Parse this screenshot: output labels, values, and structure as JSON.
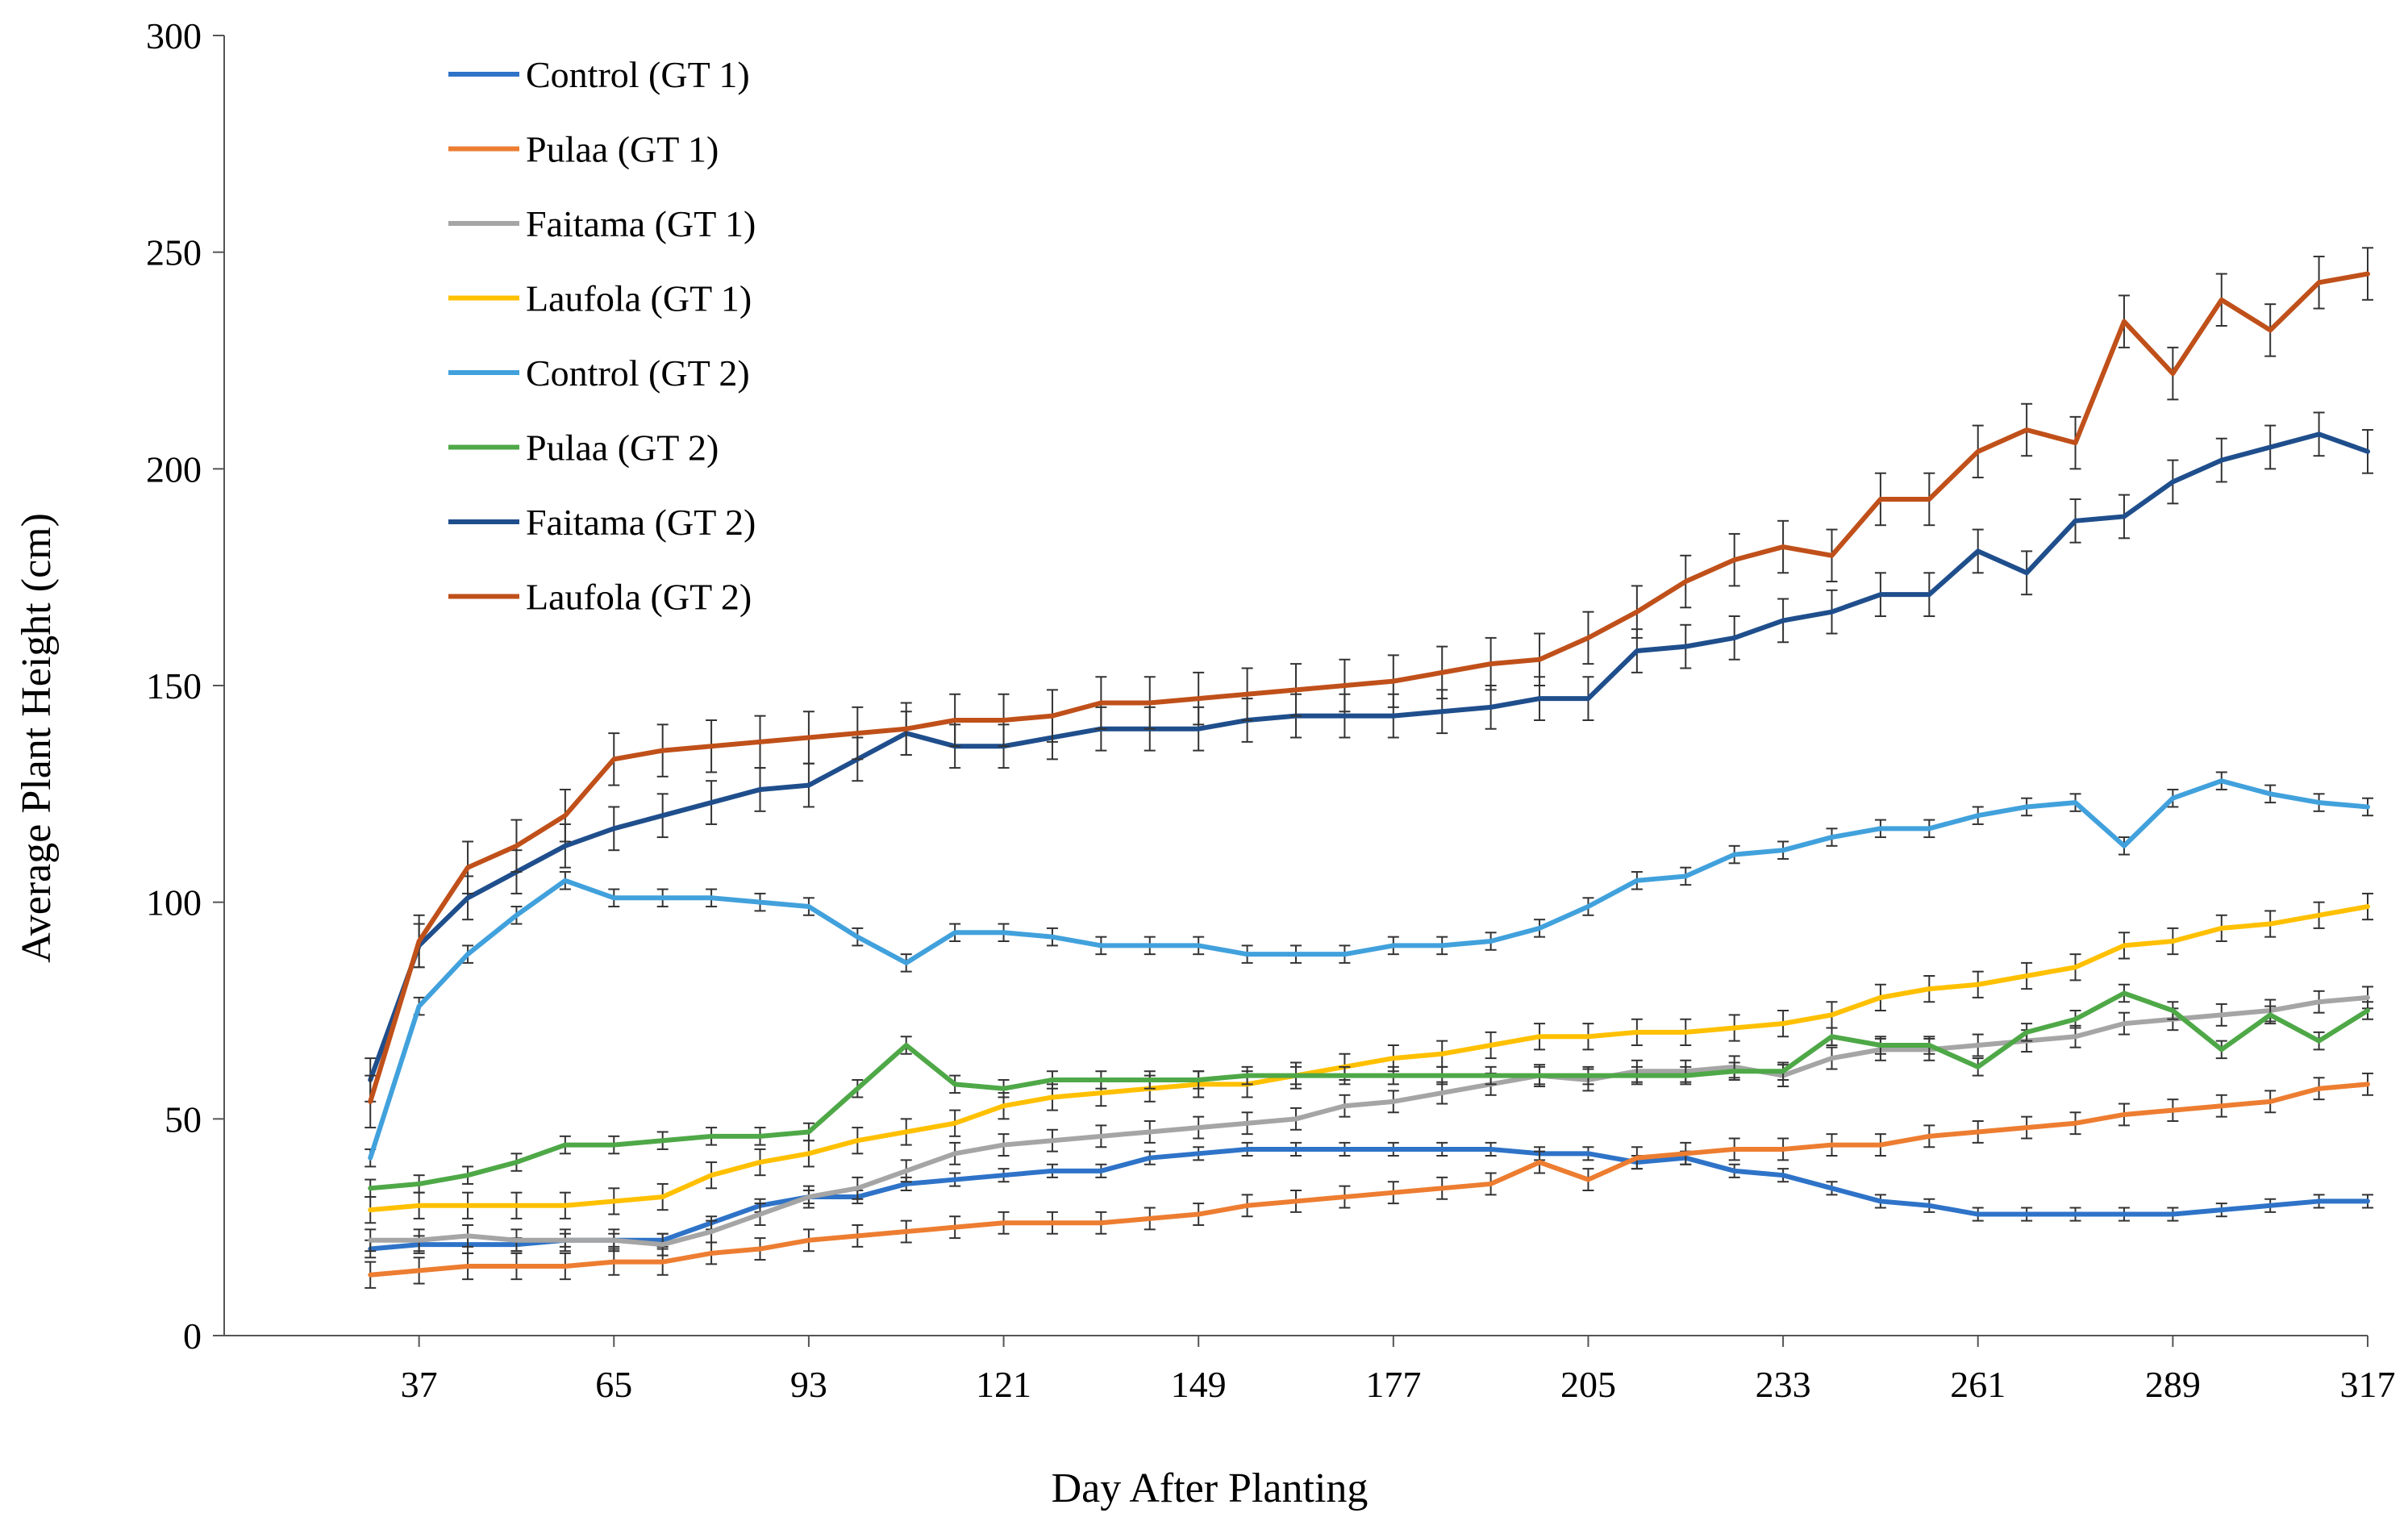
{
  "chart_data": {
    "type": "line",
    "title": "",
    "xlabel": "Day After Planting",
    "ylabel": "Average Plant Height (cm)",
    "xlim": [
      9,
      317
    ],
    "ylim": [
      0,
      300
    ],
    "xticks": [
      37,
      65,
      93,
      121,
      149,
      177,
      205,
      233,
      261,
      289,
      317
    ],
    "yticks": [
      0,
      50,
      100,
      150,
      200,
      250,
      300
    ],
    "grid": false,
    "legend_position": "top-left",
    "x": [
      30,
      37,
      44,
      51,
      58,
      65,
      72,
      79,
      86,
      93,
      100,
      107,
      114,
      121,
      128,
      135,
      142,
      149,
      156,
      163,
      170,
      177,
      184,
      191,
      198,
      205,
      212,
      219,
      226,
      233,
      240,
      247,
      254,
      261,
      268,
      275,
      282,
      289,
      296,
      303,
      310,
      317
    ],
    "series": [
      {
        "name": "Control (GT 1)",
        "color": "#2e73c8",
        "values": [
          20,
          21,
          21,
          21,
          22,
          22,
          22,
          26,
          30,
          32,
          32,
          35,
          36,
          37,
          38,
          38,
          41,
          42,
          43,
          43,
          43,
          43,
          43,
          43,
          42,
          42,
          40,
          41,
          38,
          37,
          34,
          31,
          30,
          28,
          28,
          28,
          28,
          28,
          29,
          30,
          31,
          31
        ],
        "errors": [
          2,
          2,
          2,
          1.5,
          1.5,
          1.5,
          1.5,
          1.5,
          1.5,
          1.5,
          1.5,
          1.5,
          1.5,
          1.5,
          1.5,
          1.5,
          1.5,
          1.5,
          1.5,
          1.5,
          1.5,
          1.5,
          1.5,
          1.5,
          1.5,
          1.5,
          1.5,
          1.5,
          1.5,
          1.5,
          1.5,
          1.5,
          1.5,
          1.5,
          1.5,
          1.5,
          1.5,
          1.5,
          1.5,
          1.5,
          1.5,
          1.5
        ]
      },
      {
        "name": "Pulaa (GT 1)",
        "color": "#ed7d31",
        "values": [
          14,
          15,
          16,
          16,
          16,
          17,
          17,
          19,
          20,
          22,
          23,
          24,
          25,
          26,
          26,
          26,
          27,
          28,
          30,
          31,
          32,
          33,
          34,
          35,
          40,
          36,
          41,
          42,
          43,
          43,
          44,
          44,
          46,
          47,
          48,
          49,
          51,
          52,
          53,
          54,
          57,
          58
        ],
        "errors": [
          3,
          3,
          3,
          3,
          3,
          3,
          3,
          2.5,
          2.5,
          2.5,
          2.5,
          2.5,
          2.5,
          2.5,
          2.5,
          2.5,
          2.5,
          2.5,
          2.5,
          2.5,
          2.5,
          2.5,
          2.5,
          2.5,
          2.5,
          2.5,
          2.5,
          2.5,
          2.5,
          2.5,
          2.5,
          2.5,
          2.5,
          2.5,
          2.5,
          2.5,
          2.5,
          2.5,
          2.5,
          2.5,
          2.5,
          2.5
        ]
      },
      {
        "name": "Faitama (GT 1)",
        "color": "#a5a5a5",
        "values": [
          22,
          22,
          23,
          22,
          22,
          22,
          21,
          24,
          28,
          32,
          34,
          38,
          42,
          44,
          45,
          46,
          47,
          48,
          49,
          50,
          53,
          54,
          56,
          58,
          60,
          59,
          61,
          61,
          62,
          60,
          64,
          66,
          66,
          67,
          68,
          69,
          72,
          73,
          74,
          75,
          77,
          78
        ],
        "errors": [
          2.5,
          2.5,
          2.5,
          2.5,
          2.5,
          2.5,
          2.5,
          2.5,
          2.5,
          2.5,
          2.5,
          2.5,
          2.5,
          2.5,
          2.5,
          2.5,
          2.5,
          2.5,
          2.5,
          2.5,
          2.5,
          2.5,
          2.5,
          2.5,
          2.5,
          2.5,
          2.5,
          2.5,
          2.5,
          2.5,
          2.5,
          2.5,
          2.5,
          2.5,
          2.5,
          2.5,
          2.5,
          2.5,
          2.5,
          2.5,
          2.5,
          2.5
        ]
      },
      {
        "name": "Laufola (GT 1)",
        "color": "#ffc000",
        "values": [
          29,
          30,
          30,
          30,
          30,
          31,
          32,
          37,
          40,
          42,
          45,
          47,
          49,
          53,
          55,
          56,
          57,
          58,
          58,
          60,
          62,
          64,
          65,
          67,
          69,
          69,
          70,
          70,
          71,
          72,
          74,
          78,
          80,
          81,
          83,
          85,
          90,
          91,
          94,
          95,
          97,
          99
        ],
        "errors": [
          3,
          3,
          3,
          3,
          3,
          3,
          3,
          3,
          3,
          3,
          3,
          3,
          3,
          3,
          3,
          3,
          3,
          3,
          3,
          3,
          3,
          3,
          3,
          3,
          3,
          3,
          3,
          3,
          3,
          3,
          3,
          3,
          3,
          3,
          3,
          3,
          3,
          3,
          3,
          3,
          3,
          3
        ]
      },
      {
        "name": "Control (GT 2)",
        "color": "#41a1dc",
        "values": [
          41,
          76,
          88,
          97,
          105,
          101,
          101,
          101,
          100,
          99,
          92,
          86,
          93,
          93,
          92,
          90,
          90,
          90,
          88,
          88,
          88,
          90,
          90,
          91,
          94,
          99,
          105,
          106,
          111,
          112,
          115,
          117,
          117,
          120,
          122,
          123,
          113,
          124,
          128,
          125,
          123,
          122
        ],
        "errors": [
          2,
          2,
          2,
          2,
          2,
          2,
          2,
          2,
          2,
          2,
          2,
          2,
          2,
          2,
          2,
          2,
          2,
          2,
          2,
          2,
          2,
          2,
          2,
          2,
          2,
          2,
          2,
          2,
          2,
          2,
          2,
          2,
          2,
          2,
          2,
          2,
          2,
          2,
          2,
          2,
          2,
          2
        ]
      },
      {
        "name": "Pulaa (GT 2)",
        "color": "#4ea847",
        "values": [
          34,
          35,
          37,
          40,
          44,
          44,
          45,
          46,
          46,
          47,
          57,
          67,
          58,
          57,
          59,
          59,
          59,
          59,
          60,
          60,
          60,
          60,
          60,
          60,
          60,
          60,
          60,
          60,
          61,
          61,
          69,
          67,
          67,
          62,
          70,
          73,
          79,
          75,
          66,
          74,
          68,
          75
        ],
        "errors": [
          2,
          2,
          2,
          2,
          2,
          2,
          2,
          2,
          2,
          2,
          2,
          2,
          2,
          2,
          2,
          2,
          2,
          2,
          2,
          2,
          2,
          2,
          2,
          2,
          2,
          2,
          2,
          2,
          2,
          2,
          2,
          2,
          2,
          2,
          2,
          2,
          2,
          2,
          2,
          2,
          2,
          2
        ]
      },
      {
        "name": "Faitama (GT 2)",
        "color": "#1f4e8c",
        "values": [
          59,
          90,
          101,
          107,
          113,
          117,
          120,
          123,
          126,
          127,
          133,
          139,
          136,
          136,
          138,
          140,
          140,
          140,
          142,
          143,
          143,
          143,
          144,
          145,
          147,
          147,
          158,
          159,
          161,
          165,
          167,
          171,
          171,
          181,
          176,
          188,
          189,
          197,
          202,
          205,
          208,
          204
        ],
        "errors": [
          5,
          5,
          5,
          5,
          5,
          5,
          5,
          5,
          5,
          5,
          5,
          5,
          5,
          5,
          5,
          5,
          5,
          5,
          5,
          5,
          5,
          5,
          5,
          5,
          5,
          5,
          5,
          5,
          5,
          5,
          5,
          5,
          5,
          5,
          5,
          5,
          5,
          5,
          5,
          5,
          5,
          5
        ]
      },
      {
        "name": "Laufola (GT 2)",
        "color": "#c0501a",
        "values": [
          54,
          91,
          108,
          113,
          120,
          133,
          135,
          136,
          137,
          138,
          139,
          140,
          142,
          142,
          143,
          146,
          146,
          147,
          148,
          149,
          150,
          151,
          153,
          155,
          156,
          161,
          167,
          174,
          179,
          182,
          180,
          193,
          193,
          204,
          209,
          206,
          234,
          222,
          239,
          232,
          243,
          245
        ],
        "errors": [
          6,
          6,
          6,
          6,
          6,
          6,
          6,
          6,
          6,
          6,
          6,
          6,
          6,
          6,
          6,
          6,
          6,
          6,
          6,
          6,
          6,
          6,
          6,
          6,
          6,
          6,
          6,
          6,
          6,
          6,
          6,
          6,
          6,
          6,
          6,
          6,
          6,
          6,
          6,
          6,
          6,
          6
        ]
      }
    ]
  }
}
